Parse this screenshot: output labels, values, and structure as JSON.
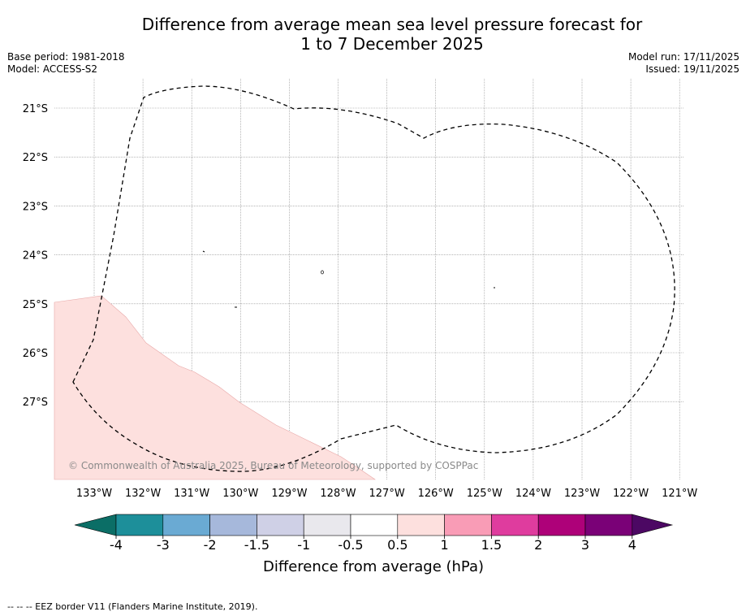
{
  "title": {
    "line1": "Difference from average mean sea level pressure forecast for",
    "line2": "1 to 7 December 2025"
  },
  "meta": {
    "base_period": "Base period: 1981-2018",
    "model": "Model: ACCESS-S2",
    "model_run": "Model run: 17/11/2025",
    "issued": "Issued: 19/11/2025"
  },
  "map": {
    "lat_labels": [
      "21°S",
      "22°S",
      "23°S",
      "24°S",
      "25°S",
      "26°S",
      "27°S"
    ],
    "lon_labels": [
      "133°W",
      "132°W",
      "131°W",
      "130°W",
      "129°W",
      "128°W",
      "127°W",
      "126°W",
      "125°W",
      "124°W",
      "123°W",
      "122°W",
      "121°W"
    ],
    "copyright": "© Commonwealth of Australia 2025, Bureau of Meteorology, supported by COSPPac",
    "anomaly_region_color": "#fde0de",
    "eez_border": "dashed"
  },
  "colorbar": {
    "label": "Difference from average (hPa)",
    "tick_labels": [
      "-4",
      "-3",
      "-2",
      "-1.5",
      "-1",
      "-0.5",
      "0.5",
      "1",
      "1.5",
      "2",
      "3",
      "4"
    ],
    "under_color": "#0b6e66",
    "over_color": "#4c0863",
    "colors": [
      "#1d8f9a",
      "#6aaad3",
      "#a6b8db",
      "#cfd0e6",
      "#e9e8ed",
      "#ffffff",
      "#fde0de",
      "#f99cb6",
      "#df3c9e",
      "#ae0179",
      "#7a0177"
    ]
  },
  "footer": {
    "legend_text": "--  --  -- EEZ border V11 (Flanders Marine Institute, 2019)."
  }
}
